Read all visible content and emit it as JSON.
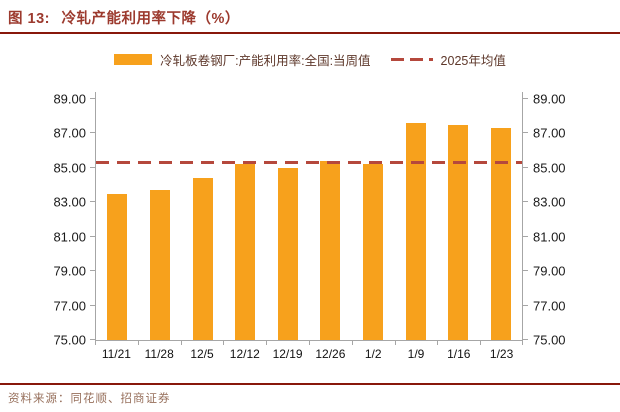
{
  "header": {
    "figure_label": "图 13:",
    "title": "冷轧产能利用率下降（%）"
  },
  "legend": {
    "bar_label": "冷轧板卷钢厂:产能利用率:全国:当周值",
    "line_label": "2025年均值"
  },
  "footer": {
    "source": "资料来源：同花顺、招商证券"
  },
  "colors": {
    "bar": "#F7A11C",
    "avg_line": "#B5483C",
    "title": "#9C3A2E",
    "rule": "#88180B",
    "legend_text": "#5E382B",
    "source_text": "#97705C",
    "axis": "#a6a6a6"
  },
  "chart_data": {
    "type": "bar",
    "title": "冷轧产能利用率下降（%）",
    "categories": [
      "11/21",
      "11/28",
      "12/5",
      "12/12",
      "12/19",
      "12/26",
      "1/2",
      "1/9",
      "1/16",
      "1/23"
    ],
    "series": [
      {
        "name": "冷轧板卷钢厂:产能利用率:全国:当周值",
        "type": "bar",
        "values": [
          83.5,
          83.7,
          84.4,
          85.2,
          85.0,
          85.4,
          85.2,
          87.6,
          87.5,
          87.3
        ]
      },
      {
        "name": "2025年均值",
        "type": "constant-line",
        "style": "dashed",
        "value": 85.3
      }
    ],
    "ylim": [
      75,
      89
    ],
    "yticks": [
      75,
      77,
      79,
      81,
      83,
      85,
      87,
      89
    ],
    "ytick_labels": [
      "75.00",
      "77.00",
      "79.00",
      "81.00",
      "83.00",
      "85.00",
      "87.00",
      "89.00"
    ],
    "dual_axis": true,
    "grid": false,
    "legend_position": "top"
  }
}
